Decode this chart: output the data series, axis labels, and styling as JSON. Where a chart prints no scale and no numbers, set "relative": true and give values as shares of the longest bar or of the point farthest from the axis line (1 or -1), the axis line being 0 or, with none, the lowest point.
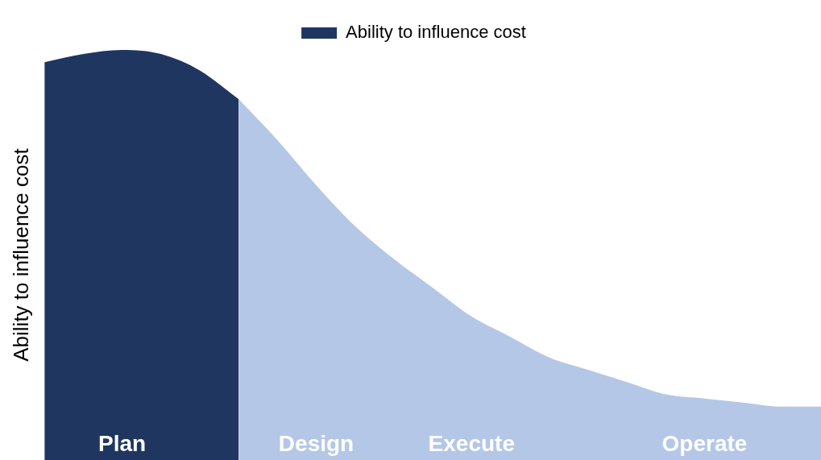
{
  "chart_data": {
    "type": "area",
    "relative": true,
    "ylabel": "Ability to influence cost",
    "legend": "top",
    "grid": false,
    "tick_labels": "x",
    "marker": "none",
    "categories": [
      null,
      null,
      "Plan",
      null,
      null,
      null,
      null,
      "Design",
      null,
      null,
      null,
      "Execute",
      null,
      null,
      null,
      null,
      null,
      "Operate",
      null,
      null,
      null
    ],
    "series": [
      {
        "name": "Ability to influence cost",
        "color": "#1f3660",
        "values": [
          0.97,
          0.99,
          1,
          0.99,
          0.95,
          0.88,
          null,
          null,
          null,
          null,
          null,
          null,
          null,
          null,
          null,
          null,
          null,
          null,
          null,
          null,
          null
        ]
      },
      {
        "color": "#b4c7e7",
        "values": [
          null,
          null,
          null,
          null,
          null,
          0.88,
          0.78,
          0.67,
          0.57,
          0.49,
          0.42,
          0.35,
          0.3,
          0.25,
          0.22,
          0.19,
          0.16,
          0.15,
          0.14,
          0.13,
          0.13
        ]
      }
    ]
  }
}
